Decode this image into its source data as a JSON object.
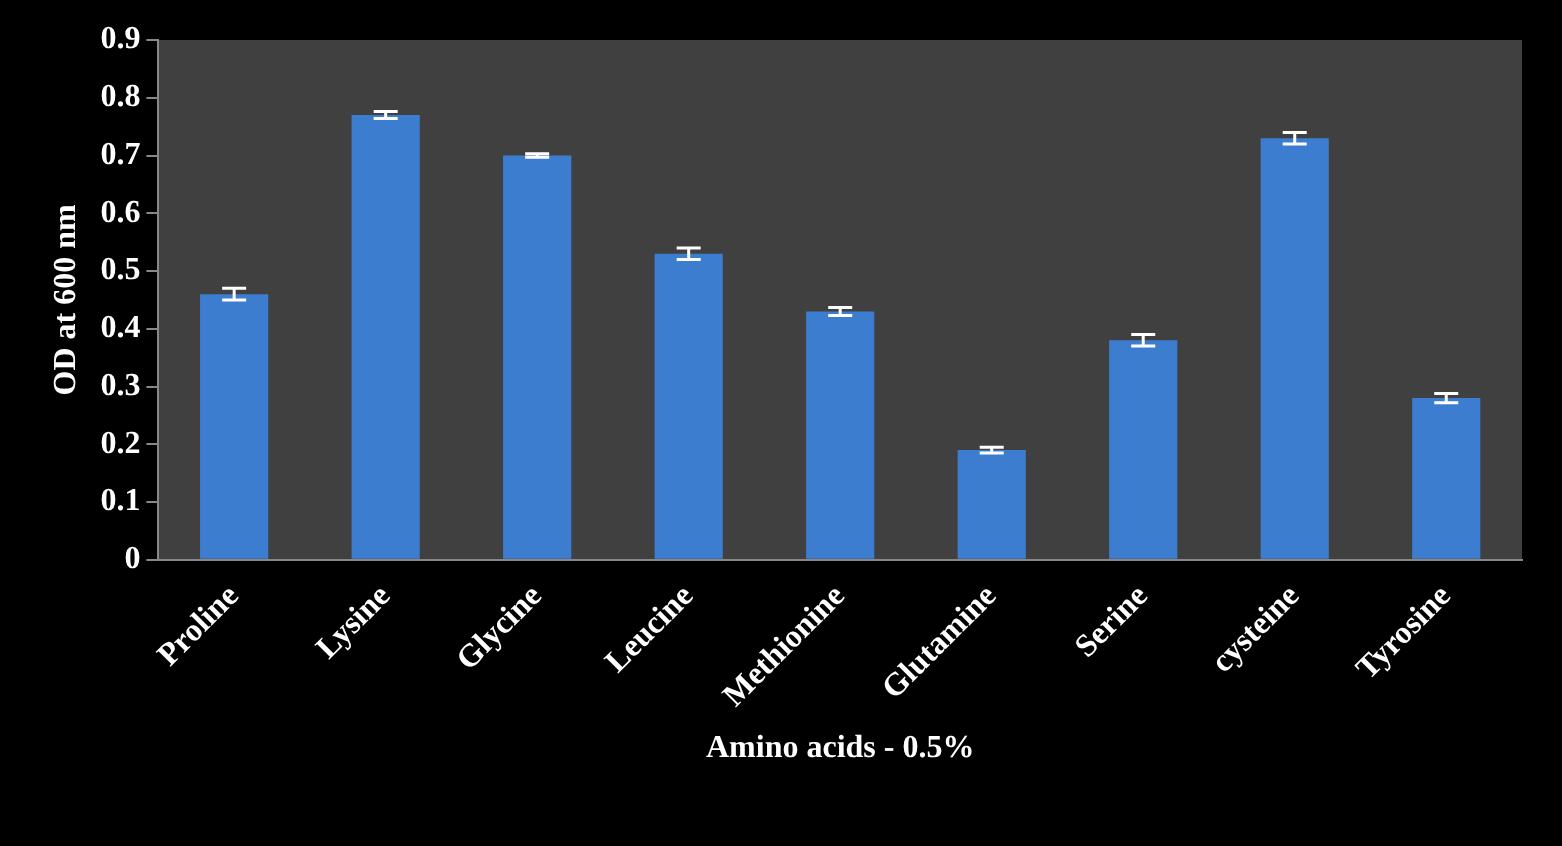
{
  "chart_data": {
    "type": "bar",
    "xlabel": "Amino acids - 0.5%",
    "ylabel": "OD at 600 nm",
    "categories": [
      "Proline",
      "Lysine",
      "Glycine",
      "Leucine",
      "Methionine",
      "Glutamine",
      "Serine",
      "cysteine",
      "Tyrosine"
    ],
    "values": [
      0.46,
      0.77,
      0.7,
      0.53,
      0.43,
      0.19,
      0.38,
      0.73,
      0.28
    ],
    "errors": [
      0.01,
      0.006,
      0.003,
      0.01,
      0.007,
      0.005,
      0.01,
      0.01,
      0.008
    ],
    "color": "#3c7dd0",
    "ylim": [
      0,
      0.9
    ],
    "yticks": [
      0,
      0.1,
      0.2,
      0.3,
      0.4,
      0.5,
      0.6,
      0.7,
      0.8,
      0.9
    ],
    "grid": false,
    "legend": false
  }
}
